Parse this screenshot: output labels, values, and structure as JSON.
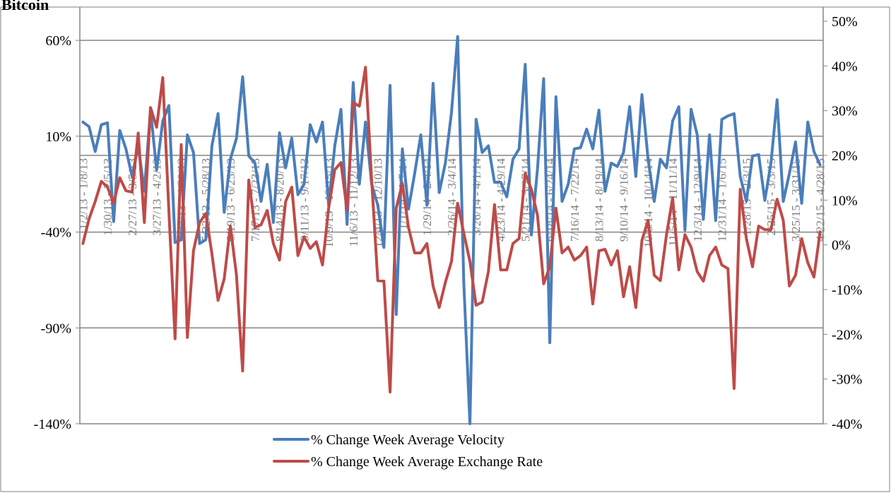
{
  "chart_data": {
    "type": "line",
    "title": "Bitcoin",
    "categories": [
      "1/2/13 - 1/8/13",
      null,
      null,
      null,
      "1/30/13 - 2/5/13",
      null,
      null,
      null,
      "2/27/13 - 3/5/13",
      null,
      null,
      null,
      "3/27/13 - 4/2/13",
      null,
      null,
      null,
      "4/24/13 - 4/30/13",
      null,
      null,
      null,
      "5/22/13 - 5/28/13",
      null,
      null,
      null,
      "6/19/13 - 6/25/13",
      null,
      null,
      null,
      "7/17/13 - 7/23/13",
      null,
      null,
      null,
      "8/14/13 - 8/20/13",
      null,
      null,
      null,
      "9/11/13 - 9/17/13",
      null,
      null,
      null,
      "10/9/13 - 10/15/13",
      null,
      null,
      null,
      "11/6/13 - 11/12/13",
      null,
      null,
      null,
      "12/4/13 - 12/10/13",
      null,
      null,
      null,
      "1/1/14 - 1/7/14",
      null,
      null,
      null,
      "1/29/14 - 2/4/14",
      null,
      null,
      null,
      "2/26/14 - 3/4/14",
      null,
      null,
      null,
      "3/26/14 - 4/1/14",
      null,
      null,
      null,
      "4/23/14 - 4/29/14",
      null,
      null,
      null,
      "5/21/14 - 5/27/14",
      null,
      null,
      null,
      "6/18/14 - 6/24/14",
      null,
      null,
      null,
      "7/16/14 - 7/22/14",
      null,
      null,
      null,
      "8/13/14 - 8/19/14",
      null,
      null,
      null,
      "9/10/14 - 9/16/14",
      null,
      null,
      null,
      "10/8/14 - 10/14/14",
      null,
      null,
      null,
      "11/5/14 - 11/11/14",
      null,
      null,
      null,
      "12/3/14 - 12/9/14",
      null,
      null,
      null,
      "12/31/14 - 1/6/15",
      null,
      null,
      null,
      "1/28/15 - 2/3/15",
      null,
      null,
      null,
      "2/25/15 - 3/3/15",
      null,
      null,
      null,
      "3/25/15 - 3/31/15",
      null,
      null,
      null,
      "4/22/15 - 4/28/15"
    ],
    "series": [
      {
        "name": "% Change Week Average Velocity",
        "color": "#4a7ebb",
        "values": [
          17.4,
          15,
          2,
          16,
          17,
          -34.5,
          13,
          3.4,
          -11,
          5,
          -18.7,
          23.6,
          -7.6,
          18,
          26,
          -45.5,
          -44,
          10.7,
          1.5,
          -46,
          -44,
          5,
          21.8,
          -29.7,
          -2,
          9,
          41,
          -0.3,
          -4,
          -24,
          -4.7,
          -35,
          11.8,
          -6.5,
          9,
          -20.5,
          -15,
          16,
          7,
          17.4,
          -26,
          5,
          24,
          -36,
          38,
          -15,
          17.4,
          -15,
          -26,
          -48,
          36.5,
          -83,
          3.4,
          -28,
          -9.5,
          10.7,
          -26,
          37.6,
          -19.4,
          -4,
          22.5,
          62,
          -66.5,
          -140,
          18.8,
          1.5,
          5,
          -14,
          -14,
          -21.6,
          -2,
          3.4,
          47.5,
          -41.5,
          -7,
          40,
          -97.7,
          30.6,
          -24,
          -15,
          3.4,
          4,
          13.7,
          3.4,
          23.6,
          -18.7,
          -4,
          -5.8,
          1.5,
          25.4,
          -11,
          31.7,
          -2,
          -24,
          -2,
          -6.5,
          18,
          25.4,
          -39,
          24,
          10.7,
          -33.4,
          10.7,
          -34,
          18.8,
          20.6,
          21.8,
          -11,
          -24,
          -0.3,
          0.4,
          -23.5,
          -4,
          29,
          -24,
          -9.5,
          7,
          -25,
          17.4,
          2,
          -5
        ]
      },
      {
        "name": "% Change Week Average Exchange Rate",
        "color": "#be4b48",
        "axis": "y2",
        "values": [
          0.3,
          5.8,
          9.7,
          14.2,
          12.9,
          9.3,
          15,
          12.1,
          11.8,
          25,
          5,
          30.7,
          26.3,
          37.4,
          7.4,
          -21,
          22.4,
          -20.7,
          -1.3,
          5,
          7,
          -2,
          -12.4,
          -7.6,
          4.2,
          -6.8,
          -28.2,
          14.5,
          3.9,
          4.5,
          7.7,
          0.3,
          -3.4,
          9.7,
          12.9,
          -2.4,
          1.8,
          -0.8,
          0.7,
          -4.5,
          8.2,
          16.8,
          18.4,
          7.7,
          31.8,
          31,
          39.7,
          14.5,
          -8,
          -8.1,
          -32.9,
          8.2,
          13.7,
          3.9,
          -1.8,
          -1.8,
          0.3,
          -9.2,
          -14,
          -8.4,
          -3.7,
          9.3,
          2.6,
          -3.7,
          -13.5,
          -12.8,
          -6,
          9,
          -5.6,
          -5.6,
          0.3,
          1.4,
          16,
          12.4,
          6.6,
          -8.7,
          -4.9,
          8.2,
          -1.8,
          -0.5,
          -3.4,
          -2.4,
          -0.5,
          -13.2,
          -1.3,
          -1,
          -4.5,
          -1.3,
          -11.6,
          -4.9,
          -14,
          1,
          5.5,
          -6.8,
          -8,
          2.3,
          10.5,
          -5.6,
          2.3,
          -0.5,
          -6,
          -8.1,
          -2.4,
          -0.5,
          -4.5,
          -5.3,
          -32.1,
          12.4,
          1.4,
          -4.9,
          4.2,
          3.4,
          3.4,
          10.2,
          5.5,
          -9.2,
          -6.8,
          1.4,
          -4,
          -7.2,
          2.9
        ]
      }
    ],
    "ylim": [
      -140,
      70
    ],
    "yticks": [
      {
        "value": -140,
        "label": "-140%"
      },
      {
        "value": -90,
        "label": "-90%"
      },
      {
        "value": -40,
        "label": "-40%"
      },
      {
        "value": 10,
        "label": "10%"
      },
      {
        "value": 60,
        "label": "60%"
      }
    ],
    "y2lim": [
      -40,
      50
    ],
    "y2ticks": [
      {
        "value": -40,
        "label": "-40%"
      },
      {
        "value": -30,
        "label": "-30%"
      },
      {
        "value": -20,
        "label": "-20%"
      },
      {
        "value": -10,
        "label": "-10%"
      },
      {
        "value": 0,
        "label": "0%"
      },
      {
        "value": 10,
        "label": "10%"
      },
      {
        "value": 20,
        "label": "20%"
      },
      {
        "value": 30,
        "label": "30%"
      },
      {
        "value": 40,
        "label": "40%"
      },
      {
        "value": 50,
        "label": "50%"
      }
    ],
    "grid": true,
    "legend": "bottom"
  }
}
